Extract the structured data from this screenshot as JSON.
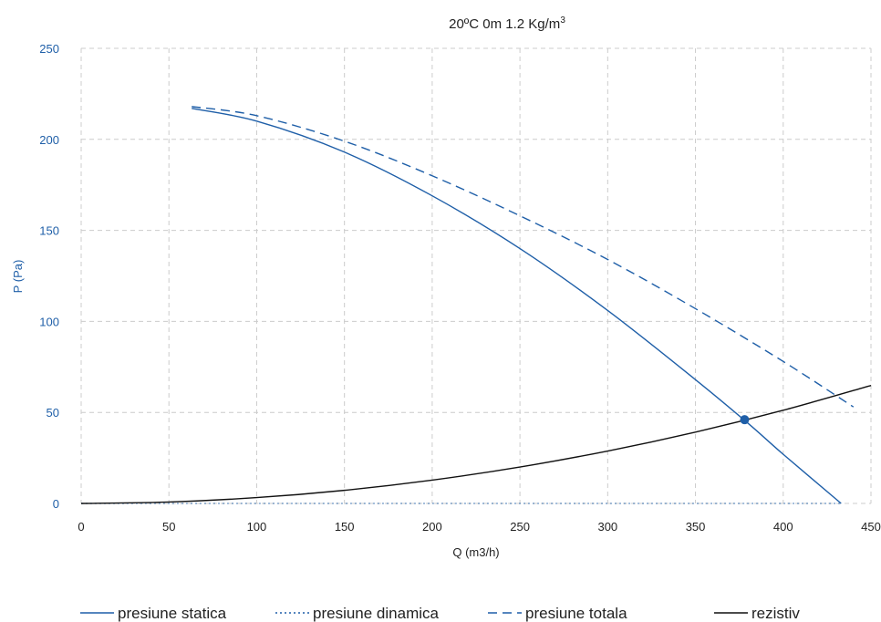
{
  "chart_data": {
    "type": "line",
    "title": "20ºC 0m 1.2 Kg/m",
    "title_superscript": "3",
    "xlabel": "Q (m3/h)",
    "ylabel": "P (Pa)",
    "xlim": [
      0,
      450
    ],
    "ylim": [
      0,
      250
    ],
    "x_ticks": [
      "0",
      "50",
      "100",
      "150",
      "200",
      "250",
      "300",
      "350",
      "400",
      "450"
    ],
    "y_ticks": [
      "0",
      "50",
      "100",
      "150",
      "200",
      "250"
    ],
    "grid": true,
    "legend_position": "bottom",
    "series": [
      {
        "name": "presiune statica",
        "style": "solid",
        "color": "#1f5fa8",
        "points": [
          [
            63,
            217
          ],
          [
            100,
            210
          ],
          [
            150,
            193
          ],
          [
            200,
            169
          ],
          [
            250,
            140
          ],
          [
            300,
            106
          ],
          [
            350,
            68
          ],
          [
            380,
            44
          ],
          [
            400,
            27
          ],
          [
            433,
            0
          ]
        ]
      },
      {
        "name": "presiune dinamica",
        "style": "dotted",
        "color": "#1f5fa8",
        "points": [
          [
            0,
            0
          ],
          [
            63,
            0
          ],
          [
            433,
            0
          ]
        ]
      },
      {
        "name": "presiune totala",
        "style": "dashed",
        "color": "#1f5fa8",
        "points": [
          [
            63,
            218
          ],
          [
            100,
            213
          ],
          [
            150,
            199
          ],
          [
            200,
            180
          ],
          [
            250,
            158
          ],
          [
            300,
            134
          ],
          [
            350,
            107
          ],
          [
            400,
            78
          ],
          [
            440,
            53
          ]
        ]
      },
      {
        "name": "rezistiv",
        "style": "solid",
        "color": "#111111",
        "points": [
          [
            0,
            0
          ],
          [
            50,
            0.8
          ],
          [
            100,
            3.2
          ],
          [
            150,
            7.2
          ],
          [
            200,
            12.8
          ],
          [
            250,
            20
          ],
          [
            300,
            28.8
          ],
          [
            350,
            39.2
          ],
          [
            400,
            51.2
          ],
          [
            450,
            64.8
          ]
        ]
      }
    ],
    "operating_point": {
      "x": 378,
      "y": 46,
      "color": "#1f5fa8"
    }
  }
}
